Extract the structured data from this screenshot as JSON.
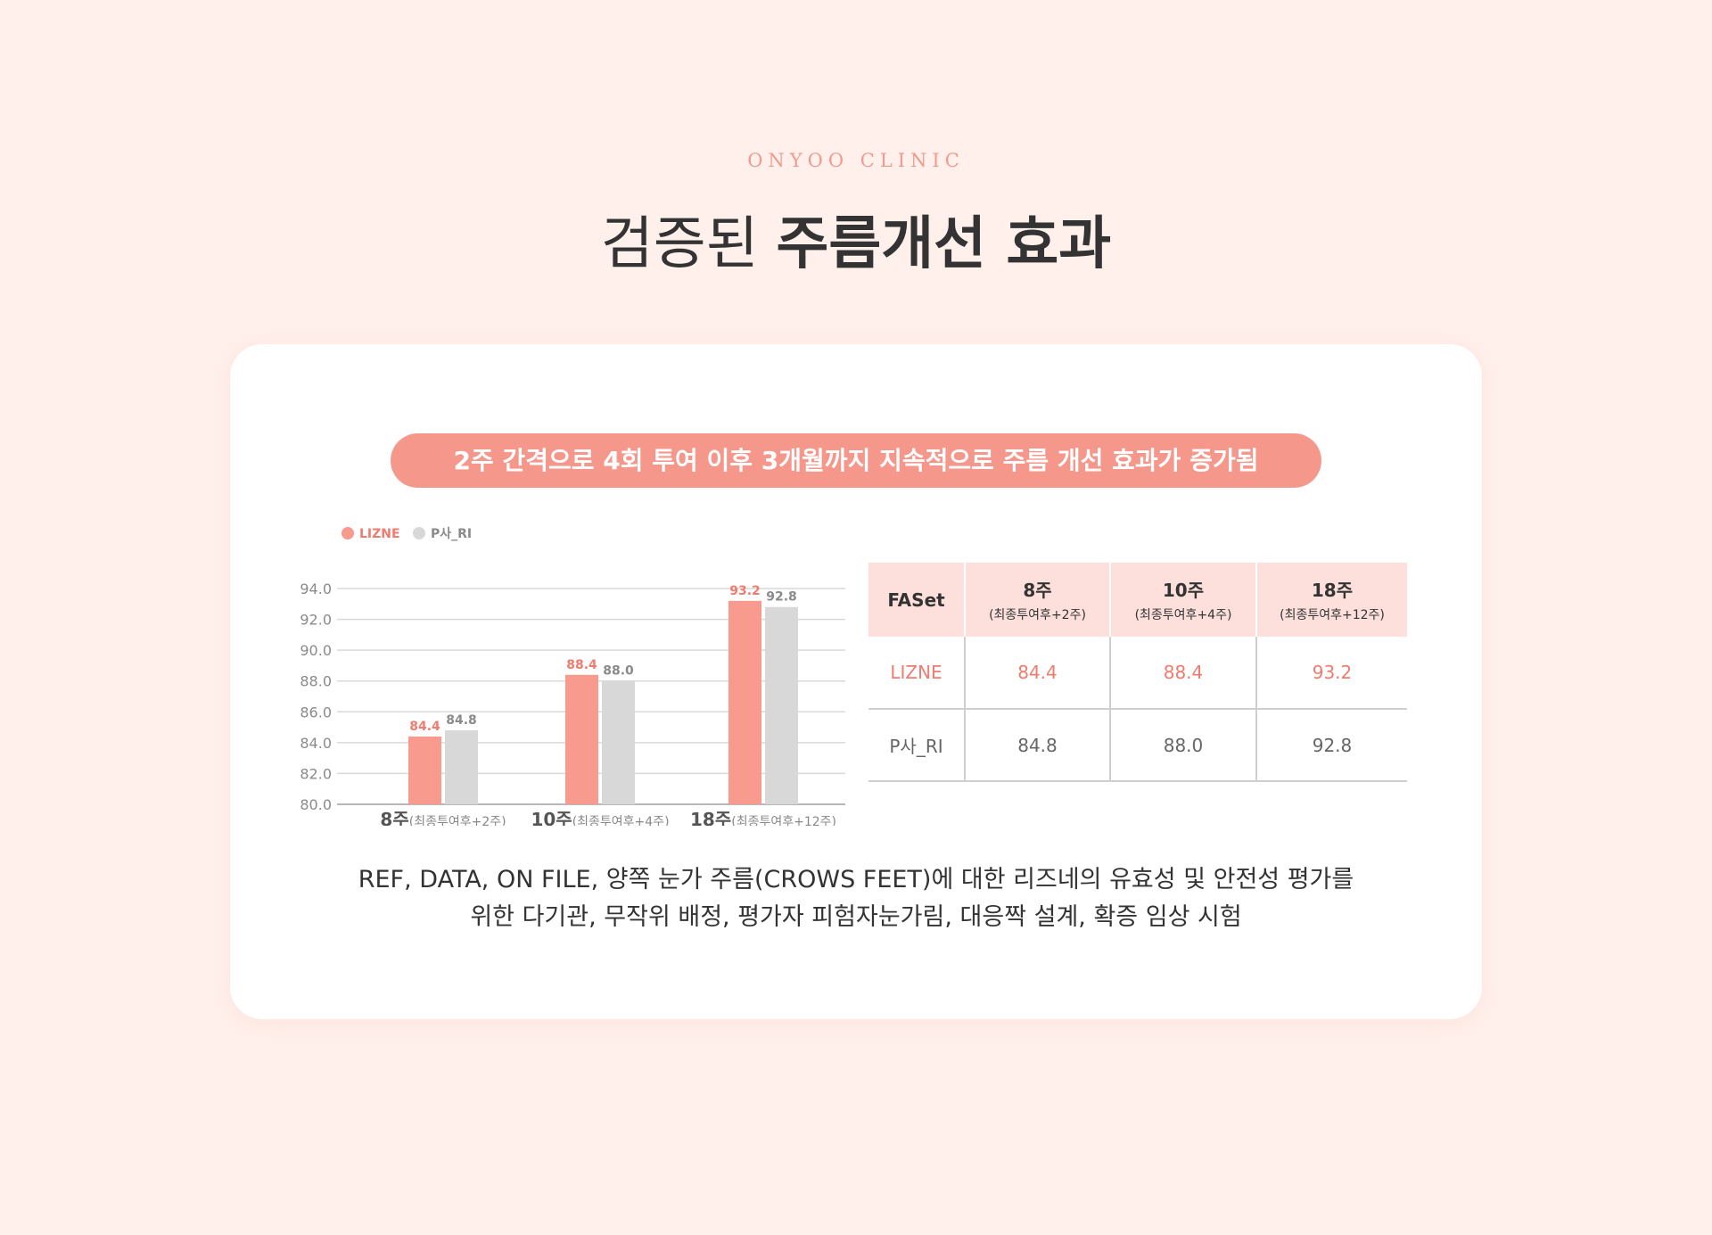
{
  "brand": "ONYOO CLINIC",
  "headline": {
    "light": "검증된",
    "bold": "주름개선 효과"
  },
  "pill": "2주 간격으로 4회 투여 이후 3개월까지 지속적으로 주름 개선 효과가 증가됨",
  "colors": {
    "lizne": "#f99a8e",
    "pri": "#d8d8d8",
    "lizne_text": "#f07b6e",
    "pri_text": "#8a8a8a"
  },
  "chart_data": {
    "type": "bar",
    "categories": [
      {
        "main": "8주",
        "sub": "(최종투여후+2주)"
      },
      {
        "main": "10주",
        "sub": "(최종투여후+4주)"
      },
      {
        "main": "18주",
        "sub": "(최종투여후+12주)"
      }
    ],
    "series": [
      {
        "name": "LIZNE",
        "values": [
          84.4,
          88.4,
          93.2
        ]
      },
      {
        "name": "P사_RI",
        "values": [
          84.8,
          88.0,
          92.8
        ]
      }
    ],
    "ylim": [
      80,
      94
    ],
    "yticks": [
      "80.0",
      "82.0",
      "84.0",
      "86.0",
      "88.0",
      "90.0",
      "92.0",
      "94.0"
    ],
    "grid": true,
    "legend": "top-left"
  },
  "table": {
    "header": [
      {
        "main": "FASet",
        "sub": ""
      },
      {
        "main": "8주",
        "sub": "(최종투여후+2주)"
      },
      {
        "main": "10주",
        "sub": "(최종투여후+4주)"
      },
      {
        "main": "18주",
        "sub": "(최종투여후+12주)"
      }
    ],
    "rows": [
      [
        "LIZNE",
        "84.4",
        "88.4",
        "93.2"
      ],
      [
        "P사_RI",
        "84.8",
        "88.0",
        "92.8"
      ]
    ]
  },
  "note": {
    "line1": "REF, DATA, ON FILE, 양쪽 눈가 주름(CROWS FEET)에 대한 리즈네의 유효성 및 안전성 평가를",
    "line2": "위한 다기관, 무작위 배정, 평가자 피험자눈가림, 대응짝 설계, 확증 임상 시험"
  }
}
